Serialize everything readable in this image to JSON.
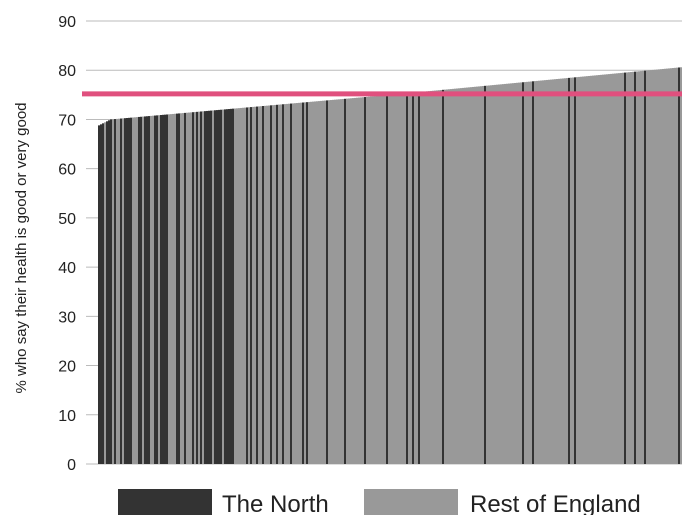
{
  "chart_data": {
    "type": "bar",
    "ylabel": "% who say their health is good or very good",
    "ylim": [
      0,
      90
    ],
    "yticks": [
      0,
      10,
      20,
      30,
      40,
      50,
      60,
      70,
      80,
      90
    ],
    "grid": true,
    "bars_sorted_ascending": true,
    "value_range": [
      68.8,
      80.6
    ],
    "reference_line": {
      "value": 75.2,
      "color": "#e0507e"
    },
    "legend_position": "bottom",
    "series": [
      {
        "name": "The North",
        "color": "#333333"
      },
      {
        "name": "Rest of England",
        "color": "#999999"
      }
    ]
  }
}
